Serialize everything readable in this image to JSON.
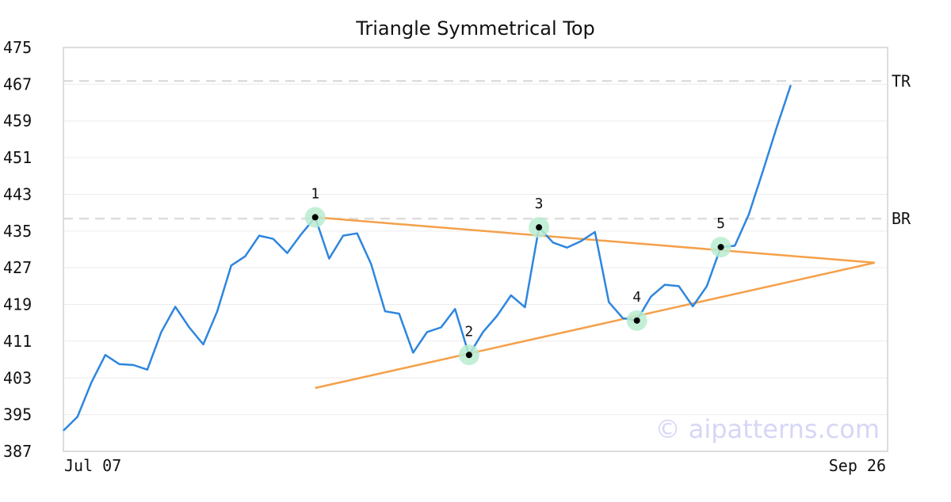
{
  "chart_data": {
    "type": "line",
    "title": "Triangle Symmetrical Top",
    "watermark": "© aipatterns.com",
    "x_start_label": "Jul 07",
    "x_end_label": "Sep 26",
    "ylim": [
      387,
      475
    ],
    "yticks": [
      387,
      395,
      403,
      411,
      419,
      427,
      435,
      443,
      451,
      459,
      467,
      475
    ],
    "grid": true,
    "colors": {
      "price_line": "#2e86de",
      "trend_lines": "#f5a04a",
      "level_lines": "#dddddd",
      "marker_halo": "#b9ecd0",
      "marker_dot": "#000000",
      "watermark": "#d6d6f7",
      "frame": "#dddddd"
    },
    "series": [
      {
        "values": [
          391.5,
          394.5,
          402.0,
          408.0,
          406.0,
          405.8,
          404.8,
          413.0,
          418.5,
          414.0,
          410.3,
          417.5,
          427.5,
          429.5,
          434.0,
          433.3,
          430.2,
          434.3,
          438.0,
          429.0,
          434.0,
          434.5,
          427.8,
          417.5,
          417.0,
          408.5,
          413.0,
          414.0,
          418.0,
          408.0,
          413.0,
          416.5,
          421.0,
          418.4,
          435.8,
          432.5,
          431.4,
          432.8,
          434.8,
          419.5,
          416.0,
          415.5,
          420.7,
          423.3,
          423.0,
          418.6,
          423.0,
          431.5,
          431.8,
          438.6,
          448.0,
          457.6,
          466.8
        ]
      }
    ],
    "levels": [
      {
        "label": "TR",
        "value": 467.7
      },
      {
        "label": "BR",
        "value": 437.7
      }
    ],
    "trend_lines": [
      {
        "from": {
          "index": 18,
          "value": 438.0
        },
        "to": {
          "index": 58,
          "value": 428.1
        }
      },
      {
        "from": {
          "index": 18,
          "value": 400.8
        },
        "to": {
          "index": 58,
          "value": 428.1
        }
      }
    ],
    "pivots": [
      {
        "label": "1",
        "index": 18,
        "value": 438.0
      },
      {
        "label": "2",
        "index": 29,
        "value": 408.0
      },
      {
        "label": "3",
        "index": 34,
        "value": 435.8
      },
      {
        "label": "4",
        "index": 41,
        "value": 415.5
      },
      {
        "label": "5",
        "index": 47,
        "value": 431.5
      }
    ]
  }
}
